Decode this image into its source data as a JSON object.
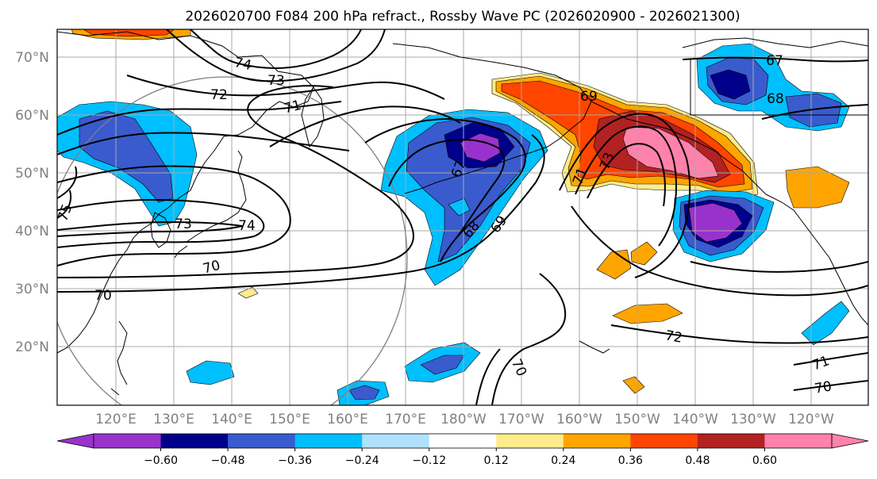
{
  "title": "2026020700 F084 200 hPa refract., Rossby Wave PC (2026020900 - 2026021300)",
  "lat_labels": [
    "70°N",
    "60°N",
    "50°N",
    "40°N",
    "30°N",
    "20°N"
  ],
  "lon_labels": [
    "120°E",
    "130°E",
    "140°E",
    "150°E",
    "160°E",
    "170°E",
    "180°W",
    "170°W",
    "160°W",
    "150°W",
    "140°W",
    "130°W",
    "120°W"
  ],
  "colorbar": {
    "colors": [
      "#9932CC",
      "#00008B",
      "#3A5BCD",
      "#00BFFF",
      "#B0E2FF",
      "#FFFFFF",
      "#FFEC8B",
      "#FFA500",
      "#FF4500",
      "#B22222",
      "#FF82AB"
    ],
    "ticks": [
      "−0.60",
      "−0.48",
      "−0.36",
      "−0.24",
      "−0.12",
      "0.12",
      "0.24",
      "0.36",
      "0.48",
      "0.60"
    ]
  },
  "contour_labels": [
    "74",
    "73",
    "72",
    "71",
    "69",
    "67",
    "68",
    "69",
    "71",
    "73",
    "67",
    "68",
    "73",
    "74",
    "70",
    "70",
    "75",
    "72",
    "70",
    "71",
    "70"
  ],
  "colors": {
    "coast": "#000000",
    "grid": "#a0a0a0",
    "contour": "#000000",
    "circle": "#808080"
  }
}
